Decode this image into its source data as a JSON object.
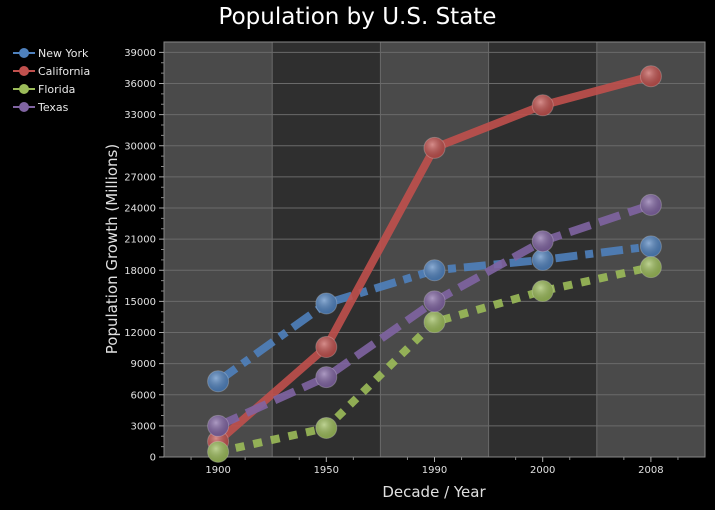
{
  "chart_data": {
    "type": "line",
    "title": "Population by U.S. State",
    "xlabel": "Decade / Year",
    "ylabel": "Population Growth (Millions)",
    "categories": [
      "1900",
      "1950",
      "1990",
      "2000",
      "2008"
    ],
    "ylim": [
      0,
      40000
    ],
    "yticks": [
      0,
      3000,
      6000,
      9000,
      12000,
      15000,
      18000,
      21000,
      24000,
      27000,
      30000,
      33000,
      36000,
      39000
    ],
    "grid": true,
    "legend_position": "top-left",
    "series": [
      {
        "name": "New York",
        "color": "#4f81bd",
        "style": "dash-dot",
        "values": [
          7300,
          14800,
          18000,
          19000,
          20300
        ]
      },
      {
        "name": "California",
        "color": "#c0504d",
        "style": "solid",
        "values": [
          1500,
          10600,
          29800,
          33900,
          36700
        ]
      },
      {
        "name": "Florida",
        "color": "#9bbb59",
        "style": "dotted",
        "values": [
          500,
          2800,
          13000,
          16000,
          18300
        ]
      },
      {
        "name": "Texas",
        "color": "#8064a2",
        "style": "dashed",
        "values": [
          3000,
          7700,
          15000,
          20800,
          24300
        ]
      }
    ]
  }
}
